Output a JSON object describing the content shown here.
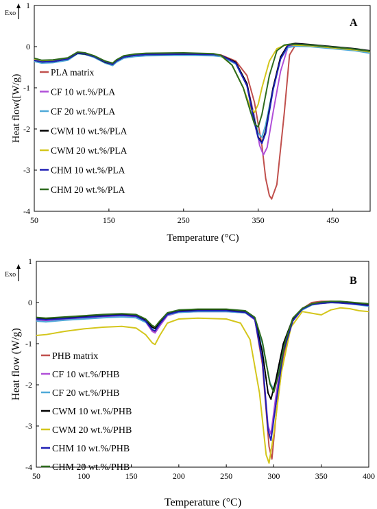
{
  "figure": {
    "panels": [
      {
        "id": "A",
        "panel_label": "A",
        "exo_label": "Exo",
        "xlabel": "Temperature (°C)",
        "ylabel": "Heat flow([W/g)",
        "xticks": [
          "50",
          "150",
          "250",
          "350",
          "450"
        ],
        "yticks": [
          "1",
          "0",
          "-1",
          "-2",
          "-3",
          "-4"
        ]
      },
      {
        "id": "B",
        "panel_label": "B",
        "exo_label": "Exo",
        "xlabel": "Temperature (°C)",
        "ylabel": "Heat flow (W/g)",
        "xticks": [
          "50",
          "100",
          "150",
          "200",
          "250",
          "300",
          "350",
          "400"
        ],
        "yticks": [
          "1",
          "0",
          "-1",
          "-2",
          "-3",
          "-4"
        ]
      }
    ]
  },
  "chart_data": [
    {
      "type": "line",
      "panel": "A",
      "xlabel": "Temperature (°C)",
      "ylabel": "Heat flow([W/g)",
      "xlim": [
        50,
        500
      ],
      "ylim": [
        -4,
        1
      ],
      "grid": false,
      "legend_position": "left",
      "series": [
        {
          "name": "PLA matrix",
          "color": "#c0504d",
          "x": [
            50,
            60,
            75,
            95,
            108,
            118,
            130,
            145,
            155,
            160,
            170,
            185,
            200,
            250,
            290,
            300,
            320,
            335,
            345,
            355,
            360,
            365,
            368,
            375,
            385,
            392,
            400,
            420,
            450,
            480,
            500
          ],
          "y": [
            -0.32,
            -0.36,
            -0.36,
            -0.3,
            -0.15,
            -0.17,
            -0.24,
            -0.38,
            -0.43,
            -0.35,
            -0.25,
            -0.21,
            -0.19,
            -0.18,
            -0.19,
            -0.2,
            -0.35,
            -0.7,
            -1.35,
            -2.4,
            -3.2,
            -3.62,
            -3.7,
            -3.35,
            -1.6,
            -0.2,
            0.04,
            0.03,
            -0.02,
            -0.07,
            -0.12
          ]
        },
        {
          "name": "CF 10 wt.%/PLA",
          "color": "#b04fd8",
          "x": [
            50,
            60,
            75,
            95,
            108,
            118,
            130,
            145,
            155,
            160,
            170,
            185,
            200,
            250,
            290,
            300,
            320,
            335,
            345,
            352,
            357,
            362,
            370,
            380,
            390,
            400,
            420,
            450,
            480,
            500
          ],
          "y": [
            -0.34,
            -0.38,
            -0.37,
            -0.31,
            -0.16,
            -0.18,
            -0.25,
            -0.38,
            -0.44,
            -0.36,
            -0.26,
            -0.22,
            -0.2,
            -0.19,
            -0.2,
            -0.22,
            -0.4,
            -0.9,
            -1.7,
            -2.4,
            -2.63,
            -2.45,
            -1.6,
            -0.6,
            0.0,
            0.05,
            0.03,
            -0.02,
            -0.07,
            -0.12
          ]
        },
        {
          "name": "CF 20 wt.%/PLA",
          "color": "#4fa9d8",
          "x": [
            50,
            60,
            75,
            95,
            108,
            118,
            130,
            145,
            155,
            160,
            170,
            185,
            200,
            250,
            290,
            300,
            320,
            335,
            345,
            350,
            355,
            360,
            370,
            380,
            390,
            400,
            420,
            450,
            480,
            500
          ],
          "y": [
            -0.36,
            -0.4,
            -0.39,
            -0.33,
            -0.17,
            -0.19,
            -0.26,
            -0.4,
            -0.46,
            -0.38,
            -0.28,
            -0.24,
            -0.22,
            -0.21,
            -0.22,
            -0.24,
            -0.42,
            -0.95,
            -1.75,
            -2.1,
            -2.2,
            -1.9,
            -1.0,
            -0.3,
            -0.02,
            0.01,
            0.0,
            -0.05,
            -0.1,
            -0.16
          ]
        },
        {
          "name": "CWM 10 wt.%/PLA",
          "color": "#000000",
          "x": [
            50,
            60,
            75,
            95,
            108,
            118,
            130,
            145,
            155,
            160,
            170,
            185,
            200,
            250,
            290,
            300,
            320,
            335,
            345,
            350,
            355,
            360,
            370,
            380,
            390,
            400,
            420,
            450,
            480,
            500
          ],
          "y": [
            -0.33,
            -0.37,
            -0.36,
            -0.3,
            -0.16,
            -0.18,
            -0.24,
            -0.38,
            -0.43,
            -0.35,
            -0.25,
            -0.21,
            -0.19,
            -0.18,
            -0.19,
            -0.21,
            -0.38,
            -0.9,
            -1.8,
            -2.2,
            -2.33,
            -2.05,
            -1.0,
            -0.25,
            0.05,
            0.08,
            0.05,
            0.0,
            -0.05,
            -0.1
          ]
        },
        {
          "name": "CWM 20 wt.%/PLA",
          "color": "#d4c61c",
          "x": [
            50,
            60,
            75,
            95,
            108,
            118,
            130,
            145,
            155,
            160,
            170,
            185,
            200,
            250,
            290,
            300,
            315,
            330,
            340,
            345,
            350,
            355,
            365,
            375,
            385,
            395,
            420,
            450,
            480,
            500
          ],
          "y": [
            -0.3,
            -0.34,
            -0.33,
            -0.28,
            -0.14,
            -0.16,
            -0.23,
            -0.36,
            -0.41,
            -0.33,
            -0.23,
            -0.19,
            -0.17,
            -0.16,
            -0.18,
            -0.22,
            -0.45,
            -1.0,
            -1.5,
            -1.6,
            -1.4,
            -1.0,
            -0.35,
            -0.05,
            0.03,
            0.04,
            0.02,
            -0.03,
            -0.08,
            -0.13
          ]
        },
        {
          "name": "CHM 10 wt.%/PLA",
          "color": "#1f1fb4",
          "x": [
            50,
            60,
            75,
            95,
            108,
            118,
            130,
            145,
            155,
            160,
            170,
            185,
            200,
            250,
            290,
            300,
            320,
            335,
            345,
            350,
            355,
            360,
            370,
            380,
            390,
            400,
            420,
            450,
            480,
            500
          ],
          "y": [
            -0.33,
            -0.37,
            -0.36,
            -0.3,
            -0.15,
            -0.17,
            -0.24,
            -0.37,
            -0.43,
            -0.35,
            -0.25,
            -0.21,
            -0.19,
            -0.18,
            -0.19,
            -0.21,
            -0.4,
            -0.95,
            -1.85,
            -2.22,
            -2.35,
            -2.1,
            -1.05,
            -0.3,
            0.03,
            0.06,
            0.04,
            -0.01,
            -0.06,
            -0.11
          ]
        },
        {
          "name": "CHM 20 wt.%/PLA",
          "color": "#2e6b1e",
          "x": [
            50,
            60,
            75,
            95,
            108,
            118,
            130,
            145,
            155,
            160,
            170,
            185,
            200,
            250,
            290,
            300,
            315,
            330,
            340,
            345,
            350,
            355,
            365,
            375,
            385,
            395,
            420,
            450,
            480,
            500
          ],
          "y": [
            -0.28,
            -0.33,
            -0.32,
            -0.27,
            -0.13,
            -0.15,
            -0.22,
            -0.35,
            -0.4,
            -0.32,
            -0.22,
            -0.18,
            -0.16,
            -0.15,
            -0.17,
            -0.21,
            -0.45,
            -1.0,
            -1.6,
            -1.88,
            -1.95,
            -1.65,
            -0.7,
            -0.1,
            0.04,
            0.06,
            0.04,
            -0.01,
            -0.06,
            -0.11
          ]
        }
      ]
    },
    {
      "type": "line",
      "panel": "B",
      "xlabel": "Temperature (°C)",
      "ylabel": "Heat flow (W/g)",
      "xlim": [
        50,
        400
      ],
      "ylim": [
        -4,
        1
      ],
      "grid": false,
      "legend_position": "left",
      "series": [
        {
          "name": "PHB matrix",
          "color": "#c0504d",
          "x": [
            50,
            60,
            80,
            100,
            120,
            140,
            155,
            165,
            172,
            175,
            180,
            188,
            200,
            220,
            250,
            270,
            280,
            288,
            295,
            298,
            303,
            310,
            320,
            330,
            340,
            350,
            360,
            370,
            380,
            390,
            400
          ],
          "y": [
            -0.4,
            -0.42,
            -0.38,
            -0.35,
            -0.32,
            -0.3,
            -0.32,
            -0.45,
            -0.68,
            -0.72,
            -0.55,
            -0.3,
            -0.22,
            -0.2,
            -0.2,
            -0.23,
            -0.4,
            -1.5,
            -3.5,
            -3.8,
            -2.6,
            -1.3,
            -0.45,
            -0.15,
            0.0,
            0.03,
            0.03,
            0.02,
            0.0,
            -0.02,
            -0.05
          ]
        },
        {
          "name": "CF 10 wt.%/PHB",
          "color": "#b04fd8",
          "x": [
            50,
            60,
            80,
            100,
            120,
            140,
            155,
            165,
            172,
            175,
            180,
            188,
            200,
            220,
            250,
            270,
            280,
            288,
            294,
            297,
            302,
            310,
            320,
            330,
            340,
            350,
            360,
            370,
            380,
            390,
            400
          ],
          "y": [
            -0.42,
            -0.44,
            -0.4,
            -0.37,
            -0.34,
            -0.32,
            -0.34,
            -0.47,
            -0.7,
            -0.74,
            -0.57,
            -0.32,
            -0.24,
            -0.22,
            -0.22,
            -0.25,
            -0.42,
            -1.4,
            -3.0,
            -3.2,
            -2.3,
            -1.1,
            -0.42,
            -0.15,
            -0.05,
            -0.02,
            0.0,
            0.0,
            -0.02,
            -0.05,
            -0.08
          ]
        },
        {
          "name": "CF 20 wt.%/PHB",
          "color": "#4fa9d8",
          "x": [
            50,
            60,
            80,
            100,
            120,
            140,
            155,
            165,
            172,
            175,
            180,
            188,
            200,
            220,
            250,
            270,
            280,
            288,
            296,
            300,
            305,
            312,
            320,
            330,
            340,
            350,
            360,
            370,
            380,
            390,
            400
          ],
          "y": [
            -0.45,
            -0.47,
            -0.43,
            -0.4,
            -0.37,
            -0.35,
            -0.37,
            -0.48,
            -0.62,
            -0.64,
            -0.5,
            -0.3,
            -0.24,
            -0.22,
            -0.22,
            -0.25,
            -0.4,
            -1.0,
            -1.95,
            -2.12,
            -1.7,
            -0.9,
            -0.4,
            -0.18,
            -0.06,
            -0.02,
            0.0,
            -0.01,
            -0.03,
            -0.06,
            -0.09
          ]
        },
        {
          "name": "CWM 10 wt.%/PHB",
          "color": "#000000",
          "x": [
            50,
            60,
            80,
            100,
            120,
            140,
            155,
            165,
            172,
            175,
            180,
            188,
            200,
            220,
            250,
            270,
            280,
            288,
            294,
            297,
            302,
            310,
            320,
            330,
            340,
            350,
            360,
            370,
            380,
            390,
            400
          ],
          "y": [
            -0.38,
            -0.4,
            -0.37,
            -0.34,
            -0.31,
            -0.29,
            -0.31,
            -0.43,
            -0.6,
            -0.63,
            -0.48,
            -0.27,
            -0.2,
            -0.18,
            -0.18,
            -0.22,
            -0.38,
            -1.2,
            -2.2,
            -2.35,
            -1.9,
            -1.0,
            -0.4,
            -0.15,
            -0.04,
            0.0,
            0.02,
            0.02,
            0.0,
            -0.02,
            -0.04
          ]
        },
        {
          "name": "CWM 20 wt.%/PHB",
          "color": "#d4c61c",
          "x": [
            50,
            60,
            80,
            100,
            120,
            140,
            155,
            165,
            172,
            175,
            180,
            188,
            200,
            220,
            250,
            265,
            275,
            285,
            292,
            295,
            300,
            308,
            318,
            330,
            340,
            350,
            360,
            370,
            380,
            390,
            400
          ],
          "y": [
            -0.8,
            -0.78,
            -0.7,
            -0.64,
            -0.6,
            -0.58,
            -0.62,
            -0.78,
            -0.98,
            -1.02,
            -0.8,
            -0.5,
            -0.4,
            -0.38,
            -0.4,
            -0.5,
            -0.9,
            -2.2,
            -3.7,
            -3.9,
            -3.2,
            -1.7,
            -0.6,
            -0.22,
            -0.26,
            -0.3,
            -0.18,
            -0.13,
            -0.15,
            -0.2,
            -0.22
          ]
        },
        {
          "name": "CHM 10 wt.%/PHB",
          "color": "#1f1fb4",
          "x": [
            50,
            60,
            80,
            100,
            120,
            140,
            155,
            165,
            172,
            175,
            180,
            188,
            200,
            220,
            250,
            270,
            280,
            288,
            294,
            297,
            302,
            310,
            320,
            330,
            340,
            350,
            360,
            370,
            380,
            390,
            400
          ],
          "y": [
            -0.4,
            -0.42,
            -0.39,
            -0.36,
            -0.33,
            -0.31,
            -0.33,
            -0.45,
            -0.66,
            -0.69,
            -0.52,
            -0.29,
            -0.22,
            -0.2,
            -0.2,
            -0.24,
            -0.4,
            -1.4,
            -3.1,
            -3.35,
            -2.5,
            -1.2,
            -0.45,
            -0.16,
            -0.05,
            -0.02,
            0.0,
            -0.01,
            -0.03,
            -0.05,
            -0.07
          ]
        },
        {
          "name": "CHM 20 wt.%/PHB",
          "color": "#2e6b1e",
          "x": [
            50,
            60,
            80,
            100,
            120,
            140,
            155,
            165,
            172,
            175,
            180,
            188,
            200,
            220,
            250,
            270,
            280,
            288,
            296,
            300,
            305,
            312,
            320,
            330,
            340,
            350,
            360,
            370,
            380,
            390,
            400
          ],
          "y": [
            -0.36,
            -0.38,
            -0.35,
            -0.32,
            -0.29,
            -0.27,
            -0.29,
            -0.4,
            -0.56,
            -0.59,
            -0.45,
            -0.25,
            -0.18,
            -0.16,
            -0.16,
            -0.2,
            -0.36,
            -0.95,
            -1.98,
            -2.18,
            -1.75,
            -0.95,
            -0.38,
            -0.14,
            -0.03,
            0.01,
            0.03,
            0.03,
            0.01,
            -0.01,
            -0.03
          ]
        }
      ]
    }
  ]
}
